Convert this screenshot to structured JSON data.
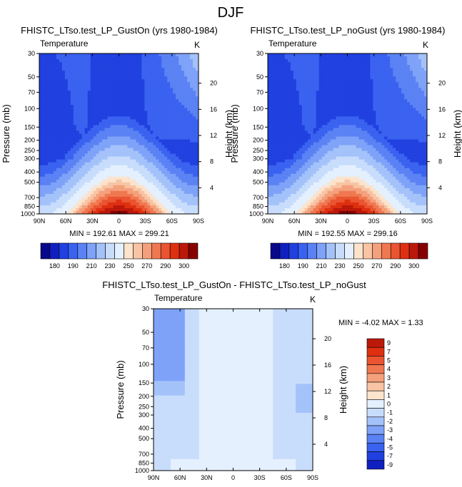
{
  "figure_title": "DJF",
  "colors": {
    "main_scale": [
      "#08088c",
      "#1020c0",
      "#2040e0",
      "#3a62f0",
      "#5a82f4",
      "#7ea2f8",
      "#a4c2fa",
      "#c8dcfc",
      "#e4f0fe",
      "#fbe3cc",
      "#f8c4a4",
      "#f4a07c",
      "#f07850",
      "#ea5430",
      "#de3010",
      "#bc180a",
      "#860000"
    ],
    "diff_scale": [
      "#08088c",
      "#1020c0",
      "#2040e0",
      "#3a62f0",
      "#5a82f4",
      "#7ea2f8",
      "#a4c2fa",
      "#c8dcfc",
      "#e4f0fe",
      "#fbe3cc",
      "#f8c4a4",
      "#f4a07c",
      "#f07850",
      "#ea5430",
      "#de3010",
      "#bc180a",
      "#860000"
    ]
  },
  "chart_data": [
    {
      "type": "heatmap",
      "id": "gust_on",
      "title": "FHISTC_LTso.test_LP_GustOn (yrs 1980-1984)",
      "left_label": "Temperature",
      "unit_label": "K",
      "xlabel": "",
      "ylabel": "Pressure (mb)",
      "y2label": "Height (km)",
      "x_ticks": [
        "90N",
        "60N",
        "30N",
        "0",
        "30S",
        "60S",
        "90S"
      ],
      "y_ticks": [
        "30",
        "50",
        "70",
        "100",
        "150",
        "200",
        "250",
        "300",
        "400",
        "500",
        "700",
        "850",
        "1000"
      ],
      "y2_ticks": [
        "20",
        "16",
        "12",
        "8",
        "4"
      ],
      "stats": "MIN = 192.61   MAX = 299.21",
      "min": 192.61,
      "max": 299.21,
      "colorbar_labels": [
        "180",
        "190",
        "210",
        "230",
        "250",
        "270",
        "290",
        "300"
      ]
    },
    {
      "type": "heatmap",
      "id": "no_gust",
      "title": "FHISTC_LTso.test_LP_noGust (yrs 1980-1984)",
      "left_label": "Temperature",
      "unit_label": "K",
      "xlabel": "",
      "ylabel": "Pressure (mb)",
      "y2label": "Height (km)",
      "x_ticks": [
        "90N",
        "60N",
        "30N",
        "0",
        "30S",
        "60S",
        "90S"
      ],
      "y_ticks": [
        "30",
        "50",
        "70",
        "100",
        "150",
        "200",
        "250",
        "300",
        "400",
        "500",
        "700",
        "850",
        "1000"
      ],
      "y2_ticks": [
        "20",
        "16",
        "12",
        "8",
        "4"
      ],
      "stats": "MIN = 192.55   MAX = 299.16",
      "min": 192.55,
      "max": 299.16,
      "colorbar_labels": [
        "180",
        "190",
        "210",
        "230",
        "250",
        "270",
        "290",
        "300"
      ]
    },
    {
      "type": "heatmap",
      "id": "difference",
      "title": "FHISTC_LTso.test_LP_GustOn - FHISTC_LTso.test_LP_noGust",
      "left_label": "Temperature",
      "unit_label": "K",
      "xlabel": "",
      "ylabel": "Pressure (mb)",
      "y2label": "Height (km)",
      "x_ticks": [
        "90N",
        "60N",
        "30N",
        "0",
        "30S",
        "60S",
        "90S"
      ],
      "y_ticks": [
        "30",
        "50",
        "70",
        "100",
        "150",
        "200",
        "250",
        "300",
        "400",
        "500",
        "700",
        "850",
        "1000"
      ],
      "y2_ticks": [
        "20",
        "16",
        "12",
        "8",
        "4"
      ],
      "stats": "MIN =  -4.02   MAX =   1.33",
      "min": -4.02,
      "max": 1.33,
      "colorbar_labels": [
        "9",
        "7",
        "5",
        "4",
        "3",
        "2",
        "1",
        "0",
        "-1",
        "-2",
        "-3",
        "-4",
        "-5",
        "-7",
        "-9"
      ]
    }
  ]
}
